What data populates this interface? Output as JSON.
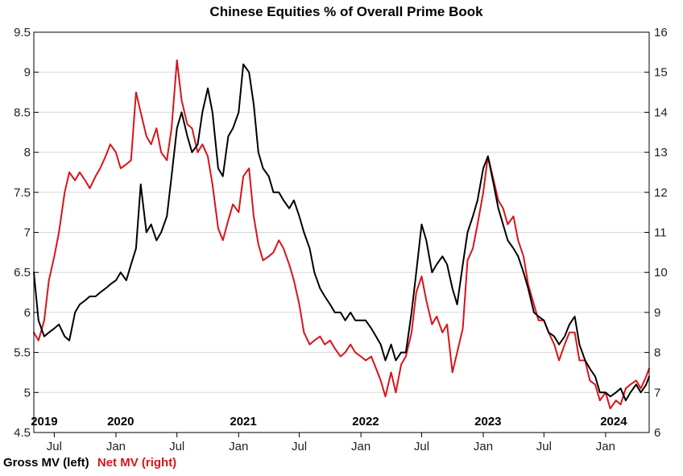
{
  "chart_data": {
    "type": "line",
    "title": "Chinese Equities % of Overall Prime Book",
    "x_range": [
      "2019-05-01",
      "2024-05-10"
    ],
    "y_left": {
      "min": 4.5,
      "max": 9.5,
      "ticks": [
        "4.5",
        "5",
        "5.5",
        "6",
        "6.5",
        "7",
        "7.5",
        "8",
        "8.5",
        "9",
        "9.5"
      ]
    },
    "y_right": {
      "min": 6,
      "max": 16,
      "ticks": [
        "6",
        "7",
        "8",
        "9",
        "10",
        "11",
        "12",
        "13",
        "14",
        "15",
        "16"
      ]
    },
    "month_ticks": [
      {
        "date": "2019-07-01",
        "label": "Jul"
      },
      {
        "date": "2020-01-01",
        "label": "Jan"
      },
      {
        "date": "2020-07-01",
        "label": "Jul"
      },
      {
        "date": "2021-01-01",
        "label": "Jan"
      },
      {
        "date": "2021-07-01",
        "label": "Jul"
      },
      {
        "date": "2022-01-01",
        "label": "Jan"
      },
      {
        "date": "2022-07-01",
        "label": "Jul"
      },
      {
        "date": "2023-01-01",
        "label": "Jan"
      },
      {
        "date": "2023-07-01",
        "label": "Jul"
      },
      {
        "date": "2024-01-01",
        "label": "Jan"
      }
    ],
    "year_labels": [
      {
        "date": "2019-06-01",
        "label": "2019"
      },
      {
        "date": "2020-01-15",
        "label": "2020"
      },
      {
        "date": "2021-01-15",
        "label": "2021"
      },
      {
        "date": "2022-01-15",
        "label": "2022"
      },
      {
        "date": "2023-01-15",
        "label": "2023"
      },
      {
        "date": "2024-01-25",
        "label": "2024"
      }
    ],
    "legend": {
      "position": "bottom-left",
      "gross": "Gross MV (left)",
      "net": "Net MV (right)"
    },
    "series": [
      {
        "name": "Gross MV (left)",
        "axis": "left",
        "color": "#000000",
        "points": [
          [
            "2019-05-01",
            6.5
          ],
          [
            "2019-05-15",
            5.9
          ],
          [
            "2019-06-01",
            5.7
          ],
          [
            "2019-06-15",
            5.75
          ],
          [
            "2019-07-01",
            5.8
          ],
          [
            "2019-07-15",
            5.85
          ],
          [
            "2019-08-01",
            5.7
          ],
          [
            "2019-08-15",
            5.65
          ],
          [
            "2019-09-01",
            6.0
          ],
          [
            "2019-09-15",
            6.1
          ],
          [
            "2019-10-01",
            6.15
          ],
          [
            "2019-10-15",
            6.2
          ],
          [
            "2019-11-01",
            6.2
          ],
          [
            "2019-11-15",
            6.25
          ],
          [
            "2019-12-01",
            6.3
          ],
          [
            "2019-12-15",
            6.35
          ],
          [
            "2020-01-01",
            6.4
          ],
          [
            "2020-01-15",
            6.5
          ],
          [
            "2020-02-01",
            6.4
          ],
          [
            "2020-02-15",
            6.6
          ],
          [
            "2020-03-01",
            6.8
          ],
          [
            "2020-03-15",
            7.6
          ],
          [
            "2020-04-01",
            7.0
          ],
          [
            "2020-04-15",
            7.1
          ],
          [
            "2020-05-01",
            6.9
          ],
          [
            "2020-05-15",
            7.0
          ],
          [
            "2020-06-01",
            7.2
          ],
          [
            "2020-06-15",
            7.7
          ],
          [
            "2020-07-01",
            8.3
          ],
          [
            "2020-07-15",
            8.5
          ],
          [
            "2020-08-01",
            8.2
          ],
          [
            "2020-08-15",
            8.0
          ],
          [
            "2020-09-01",
            8.1
          ],
          [
            "2020-09-15",
            8.5
          ],
          [
            "2020-10-01",
            8.8
          ],
          [
            "2020-10-15",
            8.5
          ],
          [
            "2020-11-01",
            7.8
          ],
          [
            "2020-11-15",
            7.7
          ],
          [
            "2020-12-01",
            8.2
          ],
          [
            "2020-12-15",
            8.3
          ],
          [
            "2021-01-01",
            8.5
          ],
          [
            "2021-01-15",
            9.1
          ],
          [
            "2021-02-01",
            9.0
          ],
          [
            "2021-02-15",
            8.6
          ],
          [
            "2021-03-01",
            8.0
          ],
          [
            "2021-03-15",
            7.8
          ],
          [
            "2021-04-01",
            7.7
          ],
          [
            "2021-04-15",
            7.5
          ],
          [
            "2021-05-01",
            7.5
          ],
          [
            "2021-05-15",
            7.4
          ],
          [
            "2021-06-01",
            7.3
          ],
          [
            "2021-06-15",
            7.4
          ],
          [
            "2021-07-01",
            7.2
          ],
          [
            "2021-07-15",
            7.0
          ],
          [
            "2021-08-01",
            6.8
          ],
          [
            "2021-08-15",
            6.5
          ],
          [
            "2021-09-01",
            6.3
          ],
          [
            "2021-09-15",
            6.2
          ],
          [
            "2021-10-01",
            6.1
          ],
          [
            "2021-10-15",
            6.0
          ],
          [
            "2021-11-01",
            6.0
          ],
          [
            "2021-11-15",
            5.9
          ],
          [
            "2021-12-01",
            6.0
          ],
          [
            "2021-12-15",
            5.9
          ],
          [
            "2022-01-01",
            5.9
          ],
          [
            "2022-01-15",
            5.9
          ],
          [
            "2022-02-01",
            5.8
          ],
          [
            "2022-02-15",
            5.7
          ],
          [
            "2022-03-01",
            5.6
          ],
          [
            "2022-03-15",
            5.4
          ],
          [
            "2022-04-01",
            5.6
          ],
          [
            "2022-04-15",
            5.4
          ],
          [
            "2022-05-01",
            5.5
          ],
          [
            "2022-05-15",
            5.5
          ],
          [
            "2022-06-01",
            6.0
          ],
          [
            "2022-06-15",
            6.5
          ],
          [
            "2022-07-01",
            7.1
          ],
          [
            "2022-07-15",
            6.9
          ],
          [
            "2022-08-01",
            6.5
          ],
          [
            "2022-08-15",
            6.6
          ],
          [
            "2022-09-01",
            6.7
          ],
          [
            "2022-09-15",
            6.6
          ],
          [
            "2022-10-01",
            6.3
          ],
          [
            "2022-10-15",
            6.1
          ],
          [
            "2022-11-01",
            6.6
          ],
          [
            "2022-11-15",
            7.0
          ],
          [
            "2022-12-01",
            7.2
          ],
          [
            "2022-12-15",
            7.4
          ],
          [
            "2023-01-01",
            7.8
          ],
          [
            "2023-01-15",
            7.95
          ],
          [
            "2023-02-01",
            7.6
          ],
          [
            "2023-02-15",
            7.3
          ],
          [
            "2023-03-01",
            7.1
          ],
          [
            "2023-03-15",
            6.9
          ],
          [
            "2023-04-01",
            6.8
          ],
          [
            "2023-04-15",
            6.7
          ],
          [
            "2023-05-01",
            6.5
          ],
          [
            "2023-05-15",
            6.3
          ],
          [
            "2023-06-01",
            6.0
          ],
          [
            "2023-06-15",
            5.95
          ],
          [
            "2023-07-01",
            5.9
          ],
          [
            "2023-07-15",
            5.75
          ],
          [
            "2023-08-01",
            5.7
          ],
          [
            "2023-08-15",
            5.6
          ],
          [
            "2023-09-01",
            5.7
          ],
          [
            "2023-09-15",
            5.85
          ],
          [
            "2023-10-01",
            5.95
          ],
          [
            "2023-10-15",
            5.6
          ],
          [
            "2023-11-01",
            5.4
          ],
          [
            "2023-11-15",
            5.3
          ],
          [
            "2023-12-01",
            5.2
          ],
          [
            "2023-12-15",
            5.0
          ],
          [
            "2024-01-01",
            5.0
          ],
          [
            "2024-01-15",
            4.95
          ],
          [
            "2024-02-01",
            5.0
          ],
          [
            "2024-02-15",
            5.05
          ],
          [
            "2024-03-01",
            4.9
          ],
          [
            "2024-03-15",
            5.0
          ],
          [
            "2024-04-01",
            5.1
          ],
          [
            "2024-04-15",
            5.0
          ],
          [
            "2024-05-01",
            5.1
          ],
          [
            "2024-05-10",
            5.2
          ]
        ]
      },
      {
        "name": "Net MV (right)",
        "axis": "right",
        "color": "#d9141a",
        "points": [
          [
            "2019-05-01",
            8.5
          ],
          [
            "2019-05-15",
            8.3
          ],
          [
            "2019-06-01",
            8.8
          ],
          [
            "2019-06-15",
            9.8
          ],
          [
            "2019-07-01",
            10.4
          ],
          [
            "2019-07-15",
            11.0
          ],
          [
            "2019-08-01",
            12.0
          ],
          [
            "2019-08-15",
            12.5
          ],
          [
            "2019-09-01",
            12.3
          ],
          [
            "2019-09-15",
            12.5
          ],
          [
            "2019-10-01",
            12.3
          ],
          [
            "2019-10-15",
            12.1
          ],
          [
            "2019-11-01",
            12.4
          ],
          [
            "2019-11-15",
            12.6
          ],
          [
            "2019-12-01",
            12.9
          ],
          [
            "2019-12-15",
            13.2
          ],
          [
            "2020-01-01",
            13.0
          ],
          [
            "2020-01-15",
            12.6
          ],
          [
            "2020-02-01",
            12.7
          ],
          [
            "2020-02-15",
            12.8
          ],
          [
            "2020-03-01",
            14.5
          ],
          [
            "2020-03-15",
            14.0
          ],
          [
            "2020-04-01",
            13.4
          ],
          [
            "2020-04-15",
            13.2
          ],
          [
            "2020-05-01",
            13.6
          ],
          [
            "2020-05-15",
            13.0
          ],
          [
            "2020-06-01",
            12.8
          ],
          [
            "2020-06-15",
            13.6
          ],
          [
            "2020-07-01",
            15.3
          ],
          [
            "2020-07-15",
            14.3
          ],
          [
            "2020-08-01",
            13.7
          ],
          [
            "2020-08-15",
            13.6
          ],
          [
            "2020-09-01",
            13.0
          ],
          [
            "2020-09-15",
            13.2
          ],
          [
            "2020-10-01",
            12.9
          ],
          [
            "2020-10-15",
            12.2
          ],
          [
            "2020-11-01",
            11.1
          ],
          [
            "2020-11-15",
            10.8
          ],
          [
            "2020-12-01",
            11.3
          ],
          [
            "2020-12-15",
            11.7
          ],
          [
            "2021-01-01",
            11.5
          ],
          [
            "2021-01-15",
            12.4
          ],
          [
            "2021-02-01",
            12.6
          ],
          [
            "2021-02-15",
            11.4
          ],
          [
            "2021-03-01",
            10.7
          ],
          [
            "2021-03-15",
            10.3
          ],
          [
            "2021-04-01",
            10.4
          ],
          [
            "2021-04-15",
            10.5
          ],
          [
            "2021-05-01",
            10.8
          ],
          [
            "2021-05-15",
            10.6
          ],
          [
            "2021-06-01",
            10.2
          ],
          [
            "2021-06-15",
            9.8
          ],
          [
            "2021-07-01",
            9.2
          ],
          [
            "2021-07-15",
            8.5
          ],
          [
            "2021-08-01",
            8.2
          ],
          [
            "2021-08-15",
            8.3
          ],
          [
            "2021-09-01",
            8.4
          ],
          [
            "2021-09-15",
            8.2
          ],
          [
            "2021-10-01",
            8.3
          ],
          [
            "2021-10-15",
            8.1
          ],
          [
            "2021-11-01",
            7.9
          ],
          [
            "2021-11-15",
            8.0
          ],
          [
            "2021-12-01",
            8.2
          ],
          [
            "2021-12-15",
            8.0
          ],
          [
            "2022-01-01",
            7.9
          ],
          [
            "2022-01-15",
            7.8
          ],
          [
            "2022-02-01",
            7.9
          ],
          [
            "2022-02-15",
            7.6
          ],
          [
            "2022-03-01",
            7.3
          ],
          [
            "2022-03-15",
            6.9
          ],
          [
            "2022-04-01",
            7.5
          ],
          [
            "2022-04-15",
            7.0
          ],
          [
            "2022-05-01",
            7.7
          ],
          [
            "2022-05-15",
            7.9
          ],
          [
            "2022-06-01",
            8.5
          ],
          [
            "2022-06-15",
            9.5
          ],
          [
            "2022-07-01",
            9.9
          ],
          [
            "2022-07-15",
            9.3
          ],
          [
            "2022-08-01",
            8.7
          ],
          [
            "2022-08-15",
            8.9
          ],
          [
            "2022-09-01",
            8.5
          ],
          [
            "2022-09-15",
            8.7
          ],
          [
            "2022-10-01",
            7.5
          ],
          [
            "2022-10-15",
            8.0
          ],
          [
            "2022-11-01",
            8.6
          ],
          [
            "2022-11-15",
            10.3
          ],
          [
            "2022-12-01",
            10.6
          ],
          [
            "2022-12-15",
            11.2
          ],
          [
            "2023-01-01",
            12.0
          ],
          [
            "2023-01-15",
            12.9
          ],
          [
            "2023-02-01",
            12.3
          ],
          [
            "2023-02-15",
            11.8
          ],
          [
            "2023-03-01",
            11.6
          ],
          [
            "2023-03-15",
            11.2
          ],
          [
            "2023-04-01",
            11.4
          ],
          [
            "2023-04-15",
            10.8
          ],
          [
            "2023-05-01",
            10.4
          ],
          [
            "2023-05-15",
            9.7
          ],
          [
            "2023-06-01",
            9.2
          ],
          [
            "2023-06-15",
            8.8
          ],
          [
            "2023-07-01",
            8.8
          ],
          [
            "2023-07-15",
            8.5
          ],
          [
            "2023-08-01",
            8.2
          ],
          [
            "2023-08-15",
            7.8
          ],
          [
            "2023-09-01",
            8.2
          ],
          [
            "2023-09-15",
            8.5
          ],
          [
            "2023-10-01",
            8.5
          ],
          [
            "2023-10-15",
            7.8
          ],
          [
            "2023-11-01",
            7.8
          ],
          [
            "2023-11-15",
            7.3
          ],
          [
            "2023-12-01",
            7.2
          ],
          [
            "2023-12-15",
            6.8
          ],
          [
            "2024-01-01",
            7.0
          ],
          [
            "2024-01-15",
            6.6
          ],
          [
            "2024-02-01",
            6.8
          ],
          [
            "2024-02-15",
            6.7
          ],
          [
            "2024-03-01",
            7.1
          ],
          [
            "2024-03-15",
            7.2
          ],
          [
            "2024-04-01",
            7.3
          ],
          [
            "2024-04-15",
            7.1
          ],
          [
            "2024-05-01",
            7.4
          ],
          [
            "2024-05-10",
            7.6
          ]
        ]
      }
    ]
  }
}
